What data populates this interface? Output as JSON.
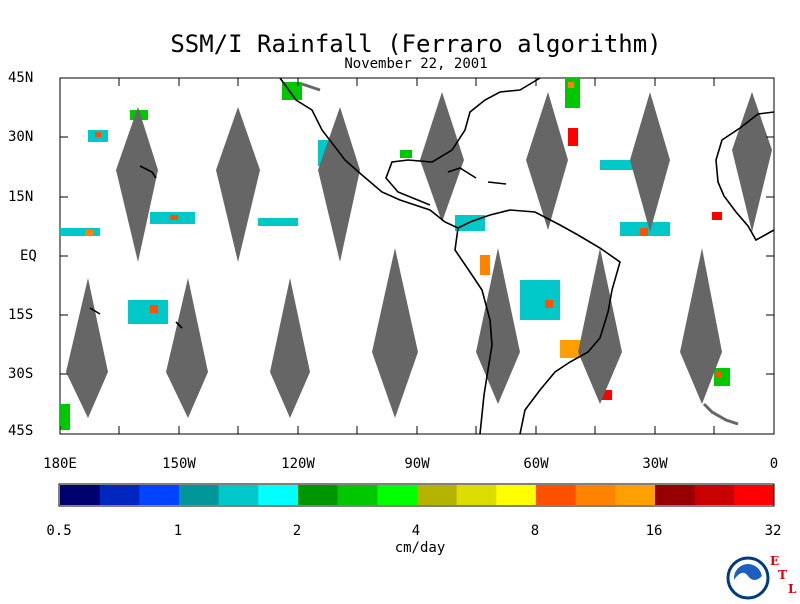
{
  "title": "SSM/I Rainfall (Ferraro algorithm)",
  "subtitle": "November 22, 2001",
  "lat_labels": [
    "45N",
    "30N",
    "15N",
    "EQ",
    "15S",
    "30S",
    "45S"
  ],
  "lon_labels": [
    "180E",
    "150W",
    "120W",
    "90W",
    "60W",
    "30W",
    "0"
  ],
  "colorbar": {
    "units": "cm/day",
    "tick_labels": [
      "0.5",
      "1",
      "2",
      "4",
      "8",
      "16",
      "32"
    ],
    "colors": [
      "#00006e",
      "#0026c0",
      "#0044ff",
      "#00969a",
      "#00c8c8",
      "#00ffff",
      "#009600",
      "#00c800",
      "#00ff00",
      "#b4b400",
      "#dcdc00",
      "#ffff00",
      "#ff5000",
      "#ff8200",
      "#ffa000",
      "#960000",
      "#c80000",
      "#ff0000"
    ]
  },
  "logo": {
    "name": "NOAA",
    "letters": [
      "E",
      "T",
      "L"
    ]
  },
  "colors": {
    "swath_gap": "#666666",
    "coast": "#000000"
  }
}
